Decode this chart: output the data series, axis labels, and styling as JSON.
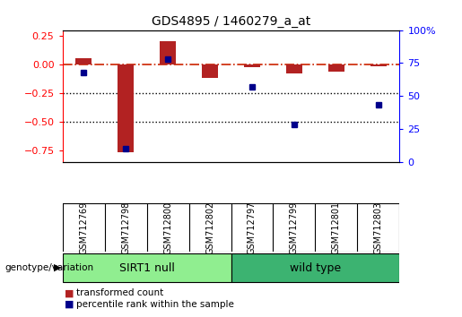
{
  "title": "GDS4895 / 1460279_a_at",
  "samples": [
    "GSM712769",
    "GSM712798",
    "GSM712800",
    "GSM712802",
    "GSM712797",
    "GSM712799",
    "GSM712801",
    "GSM712803"
  ],
  "red_bars": [
    0.055,
    -0.77,
    0.2,
    -0.12,
    -0.022,
    -0.08,
    -0.06,
    -0.018
  ],
  "blue_pct": [
    68,
    10,
    78,
    null,
    57,
    28,
    null,
    43
  ],
  "group1_label": "SIRT1 null",
  "group2_label": "wild type",
  "group1_indices": [
    0,
    1,
    2,
    3
  ],
  "group2_indices": [
    4,
    5,
    6,
    7
  ],
  "ylim_left": [
    -0.85,
    0.3
  ],
  "ylim_right": [
    0,
    100
  ],
  "yticks_left": [
    -0.75,
    -0.5,
    -0.25,
    0,
    0.25
  ],
  "yticks_right": [
    0,
    25,
    50,
    75,
    100
  ],
  "legend_red": "transformed count",
  "legend_blue": "percentile rank within the sample",
  "group_label": "genotype/variation",
  "background_color": "#ffffff",
  "plot_bg": "#ffffff",
  "group1_color": "#90EE90",
  "group2_color": "#3CB371",
  "bar_color": "#B22222",
  "dot_color": "#00008B",
  "hline_color": "#CC2200",
  "dotted_color": "#000000",
  "label_bg": "#d3d3d3",
  "bar_width": 0.4
}
